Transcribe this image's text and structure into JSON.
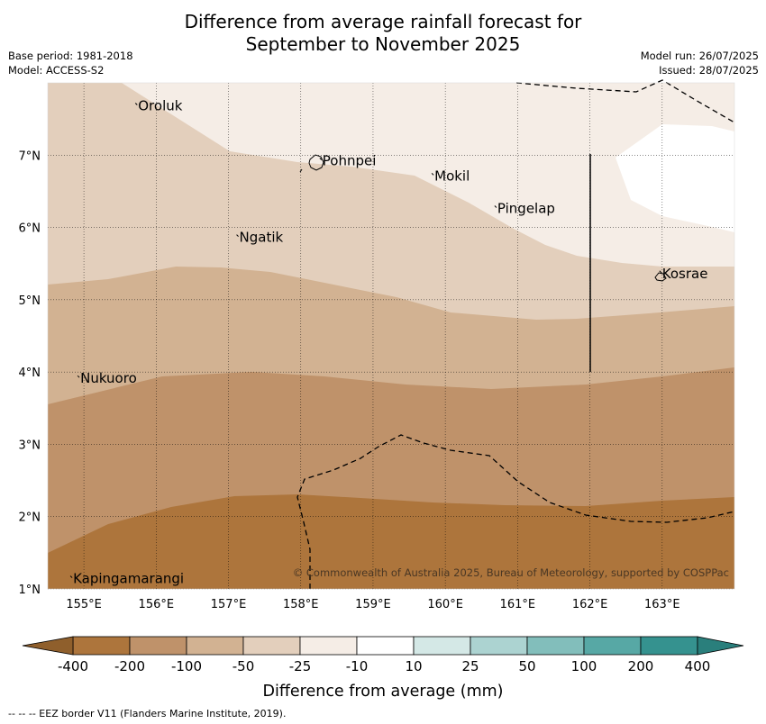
{
  "title": {
    "line1": "Difference from average rainfall forecast for",
    "line2": "September to November 2025"
  },
  "meta_left": {
    "base_period": "Base period: 1981-2018",
    "model": "Model: ACCESS-S2"
  },
  "meta_right": {
    "model_run": "Model run: 26/07/2025",
    "issued": "Issued: 28/07/2025"
  },
  "map": {
    "lon_range": [
      154.5,
      164.0
    ],
    "lat_range": [
      1.0,
      8.0
    ],
    "x_ticks": [
      {
        "value": 155,
        "label": "155°E"
      },
      {
        "value": 156,
        "label": "156°E"
      },
      {
        "value": 157,
        "label": "157°E"
      },
      {
        "value": 158,
        "label": "158°E"
      },
      {
        "value": 159,
        "label": "159°E"
      },
      {
        "value": 160,
        "label": "160°E"
      },
      {
        "value": 161,
        "label": "161°E"
      },
      {
        "value": 162,
        "label": "162°E"
      },
      {
        "value": 163,
        "label": "163°E"
      }
    ],
    "y_ticks": [
      {
        "value": 1,
        "label": "1°N"
      },
      {
        "value": 2,
        "label": "2°N"
      },
      {
        "value": 3,
        "label": "3°N"
      },
      {
        "value": 4,
        "label": "4°N"
      },
      {
        "value": 5,
        "label": "5°N"
      },
      {
        "value": 6,
        "label": "6°N"
      },
      {
        "value": 7,
        "label": "7°N"
      }
    ],
    "places": [
      {
        "name": "Oroluk",
        "lon": 155.75,
        "lat": 7.62
      },
      {
        "name": "Pohnpei",
        "lon": 158.3,
        "lat": 6.86
      },
      {
        "name": "Mokil",
        "lon": 159.85,
        "lat": 6.65
      },
      {
        "name": "Pingelap",
        "lon": 160.72,
        "lat": 6.2
      },
      {
        "name": "Ngatik",
        "lon": 157.15,
        "lat": 5.8
      },
      {
        "name": "Kosrae",
        "lon": 163.0,
        "lat": 5.3
      },
      {
        "name": "Nukuoro",
        "lon": 154.95,
        "lat": 3.85
      },
      {
        "name": "Kapingamarangi",
        "lon": 154.85,
        "lat": 1.08
      }
    ],
    "copyright": "© Commonwealth of Australia 2025, Bureau of Meteorology, supported by COSPPac"
  },
  "colorbar": {
    "label": "Difference from average (mm)",
    "tick_labels": [
      "-400",
      "-200",
      "-100",
      "-50",
      "-25",
      "-10",
      "10",
      "25",
      "50",
      "100",
      "200",
      "400"
    ],
    "colors": [
      "#ad753c",
      "#bf926a",
      "#d2b292",
      "#e3cfbc",
      "#f5ede6",
      "#ffffff",
      "#d4e8e6",
      "#acd3d1",
      "#82bebb",
      "#57a8a5",
      "#35928f"
    ],
    "extend_low_color": "#8f5f2c",
    "extend_high_color": "#2a7f7c"
  },
  "footnote": "--  --  -- EEZ border V11 (Flanders Marine Institute, 2019)."
}
